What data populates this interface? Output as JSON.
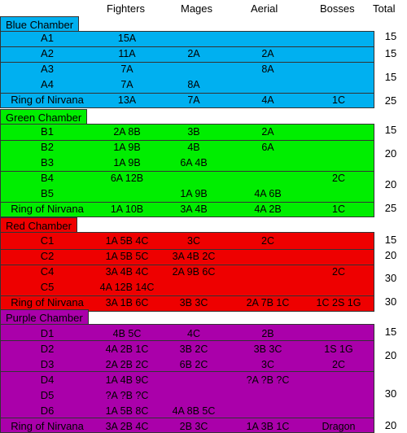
{
  "headers": [
    "Fighters",
    "Mages",
    "Aerial",
    "Bosses",
    "Total"
  ],
  "colors": {
    "blue": "#00b0f0",
    "green": "#00ee00",
    "red": "#ee0000",
    "purple": "#aa00aa"
  },
  "sections": [
    {
      "title": "Blue Chamber",
      "color": "blue",
      "rows": [
        [
          "A1",
          "15A",
          "",
          "",
          ""
        ],
        [
          "A2",
          "11A",
          "2A",
          "2A",
          ""
        ],
        [
          "A3",
          "7A",
          "",
          "8A",
          ""
        ],
        [
          "A4",
          "7A",
          "8A",
          "",
          ""
        ],
        [
          "Ring of Nirvana",
          "13A",
          "7A",
          "4A",
          "1C"
        ]
      ],
      "totals": [
        "15",
        "15",
        "15",
        "25"
      ]
    },
    {
      "title": "Green Chamber",
      "color": "green",
      "rows": [
        [
          "B1",
          "2A 8B",
          "3B",
          "2A",
          ""
        ],
        [
          "B2",
          "1A 9B",
          "4B",
          "6A",
          ""
        ],
        [
          "B3",
          "1A 9B",
          "6A 4B",
          "",
          ""
        ],
        [
          "B4",
          "6A 12B",
          "",
          "",
          "2C"
        ],
        [
          "B5",
          "",
          "1A 9B",
          "4A 6B",
          ""
        ],
        [
          "Ring of Nirvana",
          "1A 10B",
          "3A 4B",
          "4A 2B",
          "1C"
        ]
      ],
      "totals": [
        "15",
        "20",
        "20",
        "25"
      ]
    },
    {
      "title": "Red Chamber",
      "color": "red",
      "rows": [
        [
          "C1",
          "1A 5B 4C",
          "3C",
          "2C",
          ""
        ],
        [
          "C2",
          "1A 5B 5C",
          "3A 4B 2C",
          "",
          ""
        ],
        [
          "C4",
          "3A 4B 4C",
          "2A 9B 6C",
          "",
          "2C"
        ],
        [
          "C5",
          "4A 12B 14C",
          "",
          "",
          ""
        ],
        [
          "Ring of Nirvana",
          "3A 1B 6C",
          "3B 3C",
          "2A 7B 1C",
          "1C 2S 1G"
        ]
      ],
      "totals": [
        "15",
        "20",
        "30",
        "30"
      ]
    },
    {
      "title": "Purple Chamber",
      "color": "purple",
      "rows": [
        [
          "D1",
          "4B 5C",
          "4C",
          "2B",
          ""
        ],
        [
          "D2",
          "4A 2B 1C",
          "3B 2C",
          "3B 3C",
          "1S 1G"
        ],
        [
          "D3",
          "2A 2B 2C",
          "6B 2C",
          "3C",
          "2C"
        ],
        [
          "D4",
          "1A 4B 9C",
          "",
          "?A ?B ?C",
          ""
        ],
        [
          "D5",
          "?A ?B ?C",
          "",
          "",
          ""
        ],
        [
          "D6",
          "1A 5B 8C",
          "4A 8B 5C",
          "",
          ""
        ],
        [
          "Ring of Nirvana",
          "3A 2B 4C",
          "2B 3C",
          "1A 3B 1C",
          "Dragon"
        ]
      ],
      "totals": [
        "15",
        "20",
        "30",
        "20"
      ]
    }
  ]
}
